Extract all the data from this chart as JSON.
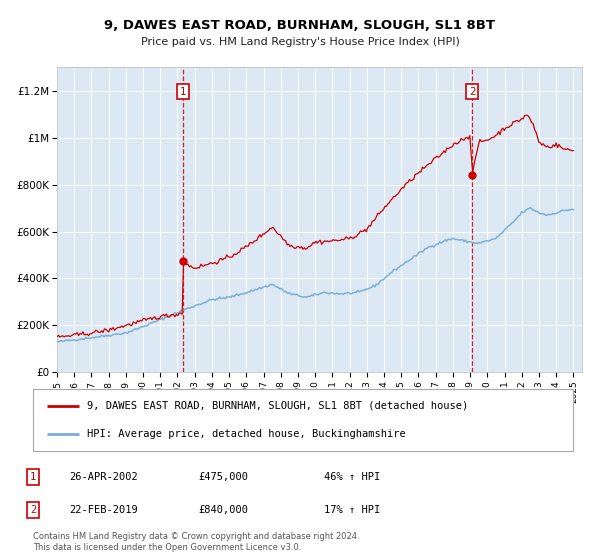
{
  "title": "9, DAWES EAST ROAD, BURNHAM, SLOUGH, SL1 8BT",
  "subtitle": "Price paid vs. HM Land Registry's House Price Index (HPI)",
  "ylabel_ticks": [
    "£0",
    "£200K",
    "£400K",
    "£600K",
    "£800K",
    "£1M",
    "£1.2M"
  ],
  "ytick_values": [
    0,
    200000,
    400000,
    600000,
    800000,
    1000000,
    1200000
  ],
  "ylim": [
    0,
    1300000
  ],
  "xlim_start": 1995.0,
  "xlim_end": 2025.5,
  "background_color": "#dce9f5",
  "outer_bg_color": "#ffffff",
  "line1_color": "#cc0000",
  "line2_color": "#7ab0d4",
  "transaction1_date": 2002.32,
  "transaction1_price": 475000,
  "transaction2_date": 2019.13,
  "transaction2_price": 840000,
  "legend_label1": "9, DAWES EAST ROAD, BURNHAM, SLOUGH, SL1 8BT (detached house)",
  "legend_label2": "HPI: Average price, detached house, Buckinghamshire",
  "annotation1_label": "26-APR-2002",
  "annotation1_price": "£475,000",
  "annotation1_hpi": "46% ↑ HPI",
  "annotation2_label": "22-FEB-2019",
  "annotation2_price": "£840,000",
  "annotation2_hpi": "17% ↑ HPI",
  "footer": "Contains HM Land Registry data © Crown copyright and database right 2024.\nThis data is licensed under the Open Government Licence v3.0.",
  "xtick_years": [
    1995,
    1996,
    1997,
    1998,
    1999,
    2000,
    2001,
    2002,
    2003,
    2004,
    2005,
    2006,
    2007,
    2008,
    2009,
    2010,
    2011,
    2012,
    2013,
    2014,
    2015,
    2016,
    2017,
    2018,
    2019,
    2020,
    2021,
    2022,
    2023,
    2024,
    2025
  ]
}
